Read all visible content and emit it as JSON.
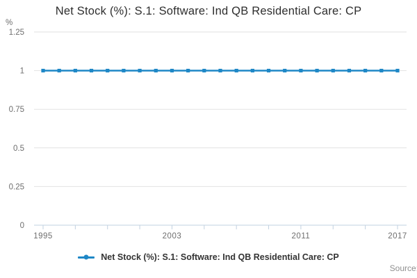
{
  "title": "Net Stock (%): S.1: Software: Ind QB Residential Care: CP",
  "unit_label": "%",
  "legend": {
    "label": "Net Stock (%): S.1: Software: Ind QB Residential Care: CP"
  },
  "source_label": "Source:",
  "colors": {
    "line": "#1e87c6",
    "grid": "#e2e2e2",
    "axis": "#c2d1e0",
    "axis_text": "#6e6e6e",
    "title_text": "#2e2e2e",
    "legend_text": "#333333",
    "source_text": "#8f8f8f",
    "background": "#ffffff"
  },
  "chart_data": {
    "type": "line",
    "title": "Net Stock (%): S.1: Software: Ind QB Residential Care: CP",
    "xlabel": "",
    "ylabel": "%",
    "x": [
      1995,
      1996,
      1997,
      1998,
      1999,
      2000,
      2001,
      2002,
      2003,
      2004,
      2005,
      2006,
      2007,
      2008,
      2009,
      2010,
      2011,
      2012,
      2013,
      2014,
      2015,
      2016,
      2017
    ],
    "series": [
      {
        "name": "Net Stock (%): S.1: Software: Ind QB Residential Care: CP",
        "values": [
          1,
          1,
          1,
          1,
          1,
          1,
          1,
          1,
          1,
          1,
          1,
          1,
          1,
          1,
          1,
          1,
          1,
          1,
          1,
          1,
          1,
          1,
          1
        ]
      }
    ],
    "xlim": [
      1995,
      2017
    ],
    "ylim": [
      0,
      1.25
    ],
    "y_ticks": [
      0,
      0.25,
      0.5,
      0.75,
      1,
      1.25
    ],
    "y_tick_labels": [
      "0",
      "0.25",
      "0.5",
      "0.75",
      "1",
      "1.25"
    ],
    "x_minor_ticks": [
      1995,
      1997,
      1999,
      2001,
      2003,
      2005,
      2007,
      2009,
      2011,
      2013,
      2015,
      2017
    ],
    "x_labeled_ticks": [
      1995,
      2003,
      2011,
      2017
    ],
    "grid": "horizontal",
    "legend_position": "bottom",
    "marker": "square"
  }
}
